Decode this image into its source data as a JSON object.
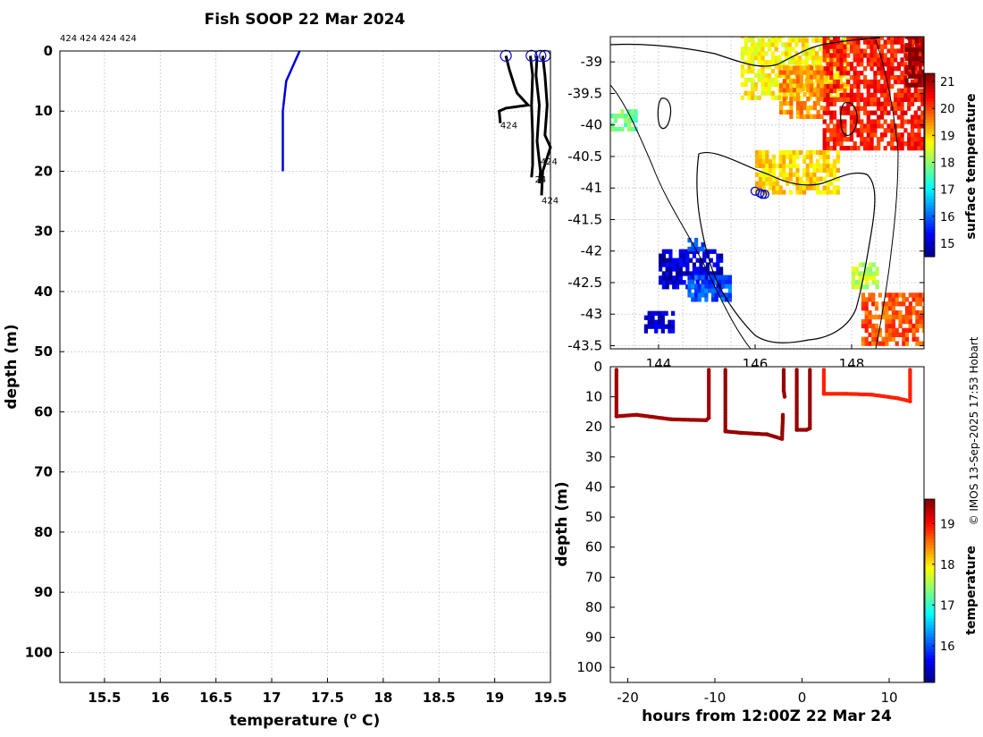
{
  "title": "Fish SOOP 22 Mar 2024",
  "credit": "© IMOS 13-Sep-2025 17:53 Hobart",
  "profile_ids_top": "424 424 424 424",
  "chart_data": [
    {
      "name": "temperature-profile",
      "type": "line",
      "xlabel": "temperature (",
      "xlabel_unit": "o",
      "xlabel_end": " C)",
      "ylabel": "depth (m)",
      "xlim": [
        15.1,
        19.5
      ],
      "ylim": [
        0,
        105
      ],
      "xticks": [
        15.5,
        16,
        16.5,
        17,
        17.5,
        18,
        18.5,
        19,
        19.5
      ],
      "xtick_labels": [
        "15.5",
        "16",
        "16.5",
        "17",
        "17.5",
        "18",
        "18.5",
        "19",
        "19.5"
      ],
      "yticks": [
        0,
        10,
        20,
        30,
        40,
        50,
        60,
        70,
        80,
        90,
        100
      ],
      "ytick_labels": [
        "0",
        "10",
        "20",
        "30",
        "40",
        "50",
        "60",
        "70",
        "80",
        "90",
        "100"
      ],
      "series": [
        {
          "name": "mean-profile",
          "color": "#0000dd",
          "points": [
            [
              17.25,
              0
            ],
            [
              17.13,
              5
            ],
            [
              17.1,
              10
            ],
            [
              17.1,
              20
            ]
          ]
        },
        {
          "name": "cast-1",
          "color": "#000000",
          "points": [
            [
              19.1,
              0.8
            ],
            [
              19.13,
              3
            ],
            [
              19.18,
              6
            ],
            [
              19.2,
              7
            ],
            [
              19.3,
              9
            ],
            [
              19.1,
              9.5
            ],
            [
              19.04,
              10
            ],
            [
              19.05,
              12
            ]
          ]
        },
        {
          "name": "cast-2",
          "color": "#000000",
          "points": [
            [
              19.32,
              0.8
            ],
            [
              19.34,
              4
            ],
            [
              19.33,
              9
            ],
            [
              19.34,
              14
            ],
            [
              19.34,
              19
            ],
            [
              19.33,
              21
            ]
          ]
        },
        {
          "name": "cast-3",
          "color": "#000000",
          "points": [
            [
              19.38,
              0.8
            ],
            [
              19.37,
              4
            ],
            [
              19.4,
              9
            ],
            [
              19.38,
              15
            ],
            [
              19.41,
              20
            ],
            [
              19.4,
              22
            ]
          ]
        },
        {
          "name": "cast-4",
          "color": "#000000",
          "points": [
            [
              19.43,
              0.8
            ],
            [
              19.45,
              4
            ],
            [
              19.47,
              9
            ],
            [
              19.45,
              14
            ],
            [
              19.5,
              16
            ],
            [
              19.43,
              20
            ],
            [
              19.42,
              24
            ]
          ]
        }
      ],
      "surface_markers": [
        19.1,
        19.33,
        19.41,
        19.45
      ],
      "cast_labels": [
        {
          "text": "424",
          "temp": 19.05,
          "depth": 12
        },
        {
          "text": "424",
          "temp": 19.41,
          "depth": 18
        },
        {
          "text": "24",
          "temp": 19.36,
          "depth": 21
        },
        {
          "text": "424",
          "temp": 19.42,
          "depth": 24.5
        }
      ]
    },
    {
      "name": "sst-map",
      "type": "heatmap",
      "ylabel": "",
      "colorbar_label": "surface temperature",
      "lon_range": [
        143.0,
        149.5
      ],
      "lat_range": [
        -43.55,
        -38.6
      ],
      "yticks": [
        -39,
        -39.5,
        -40,
        -40.5,
        -41,
        -41.5,
        -42,
        -42.5,
        -43,
        -43.5
      ],
      "ytick_labels": [
        "-39",
        "-39.5",
        "-40",
        "-40.5",
        "-41",
        "-41.5",
        "-42",
        "-42.5",
        "-43",
        "-43.5"
      ],
      "xticks": [
        144,
        146,
        148
      ],
      "xtick_labels": [
        "144",
        "146",
        "148"
      ],
      "colorbar_range": [
        14.5,
        21.3
      ],
      "colorbar_ticks": [
        15,
        16,
        17,
        18,
        19,
        20,
        21
      ],
      "colorbar_tick_labels": [
        "15",
        "16",
        "17",
        "18",
        "19",
        "20",
        "21"
      ],
      "cast_positions": [
        [
          146.0,
          -41.05
        ],
        [
          146.1,
          -41.08
        ],
        [
          146.15,
          -41.1
        ],
        [
          146.2,
          -41.1
        ]
      ],
      "sst_patches": [
        {
          "lon": [
            145.7,
            147.9
          ],
          "lat": [
            -39.6,
            -38.6
          ],
          "temp": 18.8
        },
        {
          "lon": [
            147.4,
            149.5
          ],
          "lat": [
            -40.4,
            -38.6
          ],
          "temp": 20.3
        },
        {
          "lon": [
            149.1,
            149.5
          ],
          "lat": [
            -39.4,
            -38.6
          ],
          "temp": 21.2
        },
        {
          "lon": [
            146.5,
            147.4
          ],
          "lat": [
            -39.9,
            -39.1
          ],
          "temp": 19.5
        },
        {
          "lon": [
            146.0,
            147.7
          ],
          "lat": [
            -41.1,
            -40.4
          ],
          "temp": 19.0
        },
        {
          "lon": [
            144.0,
            145.3
          ],
          "lat": [
            -42.6,
            -42.0
          ],
          "temp": 15.0
        },
        {
          "lon": [
            144.6,
            145.5
          ],
          "lat": [
            -42.8,
            -42.4
          ],
          "temp": 15.9
        },
        {
          "lon": [
            143.7,
            144.3
          ],
          "lat": [
            -43.3,
            -43.0
          ],
          "temp": 15.0
        },
        {
          "lon": [
            148.2,
            149.5
          ],
          "lat": [
            -43.5,
            -42.7
          ],
          "temp": 19.9
        },
        {
          "lon": [
            148.0,
            148.5
          ],
          "lat": [
            -42.6,
            -42.2
          ],
          "temp": 18.3
        },
        {
          "lon": [
            143.0,
            143.5
          ],
          "lat": [
            -40.1,
            -39.8
          ],
          "temp": 17.8
        },
        {
          "lon": [
            144.6,
            144.9
          ],
          "lat": [
            -42.0,
            -41.8
          ],
          "temp": 16.0
        }
      ]
    },
    {
      "name": "depth-time-section",
      "type": "scatter",
      "xlabel": "hours from 12:00Z 22 Mar 24",
      "ylabel": "depth (m)",
      "colorbar_label": "temperature",
      "xlim": [
        -22,
        14
      ],
      "ylim": [
        0,
        105
      ],
      "xticks": [
        -20,
        -10,
        0,
        10
      ],
      "xtick_labels": [
        "-20",
        "-10",
        "0",
        "10"
      ],
      "yticks": [
        0,
        10,
        20,
        30,
        40,
        50,
        60,
        70,
        80,
        90,
        100
      ],
      "ytick_labels": [
        "0",
        "10",
        "20",
        "30",
        "40",
        "50",
        "60",
        "70",
        "80",
        "90",
        "100"
      ],
      "colorbar_range": [
        15.1,
        19.6
      ],
      "colorbar_ticks": [
        16,
        17,
        18,
        19
      ],
      "colorbar_tick_labels": [
        "16",
        "17",
        "18",
        "19"
      ],
      "segments": [
        {
          "hours": [
            -21.3,
            -21.3,
            -19,
            -15,
            -11,
            -10.7,
            -10.7
          ],
          "depths": [
            1,
            16.5,
            16,
            17.5,
            17.8,
            17,
            1
          ],
          "temp": 19.45
        },
        {
          "hours": [
            -8.8,
            -8.8,
            -7,
            -4,
            -2.3,
            -2.2,
            -2.2
          ],
          "depths": [
            1,
            21.5,
            22,
            22.5,
            24,
            17,
            16
          ],
          "temp": 19.5
        },
        {
          "hours": [
            -2.1,
            -2.1,
            -2.0
          ],
          "depths": [
            1,
            8,
            10
          ],
          "temp": 19.5
        },
        {
          "hours": [
            -0.6,
            -0.6,
            0.5,
            0.9,
            0.9
          ],
          "depths": [
            1,
            21,
            21,
            20.5,
            1
          ],
          "temp": 19.5
        },
        {
          "hours": [
            2.5,
            2.5,
            5,
            8,
            11,
            12.4,
            12.4
          ],
          "depths": [
            1,
            9,
            9,
            9.3,
            10.5,
            11.5,
            1
          ],
          "temp": 18.9
        }
      ]
    }
  ]
}
